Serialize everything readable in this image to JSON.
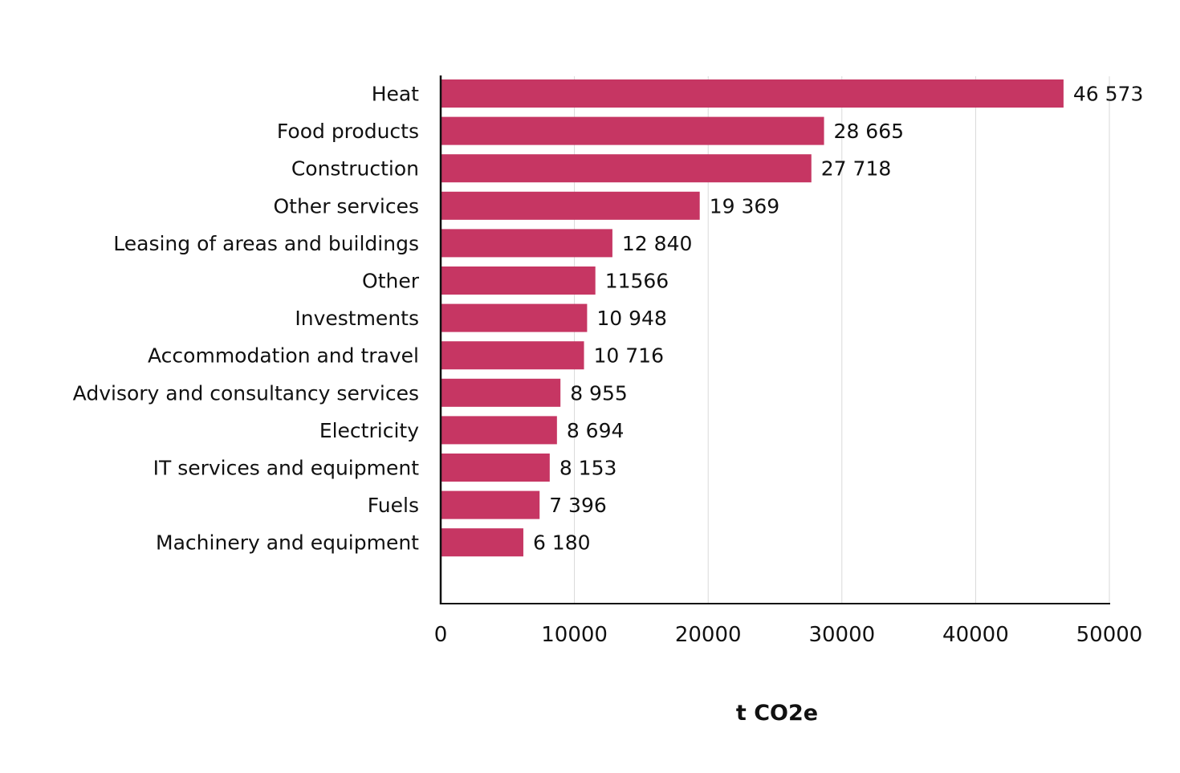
{
  "chart_data": {
    "type": "bar",
    "orientation": "horizontal",
    "title": "",
    "xlabel": "t CO2e",
    "ylabel": "",
    "xlim": [
      0,
      50000
    ],
    "xticks": [
      0,
      10000,
      20000,
      30000,
      40000,
      50000
    ],
    "xtick_labels": [
      "0",
      "10000",
      "20000",
      "30000",
      "40000",
      "50000"
    ],
    "grid": "vertical",
    "bar_color": "#C63663",
    "categories": [
      "Heat",
      "Food products",
      "Construction",
      "Other services",
      "Leasing of areas and buildings",
      "Other",
      "Investments",
      "Accommodation and travel",
      "Advisory and consultancy services",
      "Electricity",
      "IT services and equipment",
      "Fuels",
      "Machinery and equipment"
    ],
    "values": [
      46573,
      28665,
      27718,
      19369,
      12840,
      11566,
      10948,
      10716,
      8955,
      8694,
      8153,
      7396,
      6180
    ],
    "data_labels": [
      "46 573",
      "28 665",
      "27 718",
      "19 369",
      "12 840",
      "11566",
      "10 948",
      "10 716",
      "8 955",
      "8 694",
      "8 153",
      "7 396",
      "6 180"
    ]
  }
}
